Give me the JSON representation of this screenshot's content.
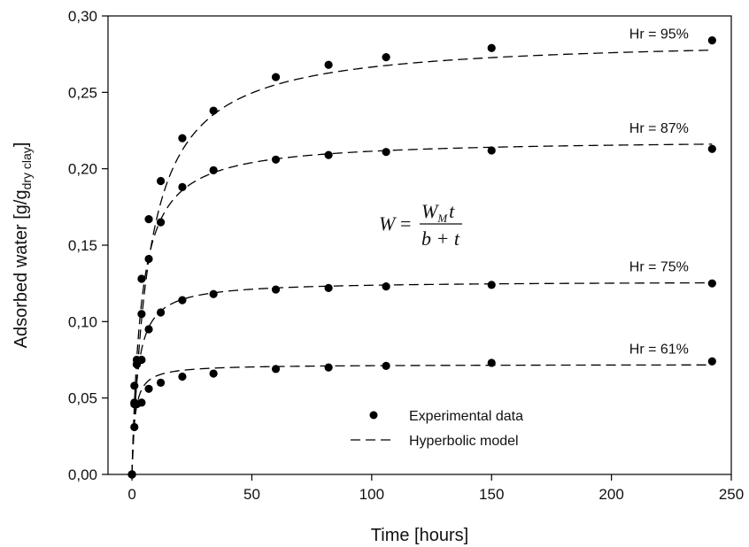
{
  "chart_data": {
    "type": "scatter",
    "xlabel": "Time [hours]",
    "ylabel_parts": {
      "main": "Adsorbed water [g/g",
      "sub": "dry clay",
      "end": "]"
    },
    "xlim": [
      -10,
      250
    ],
    "ylim": [
      0,
      0.3
    ],
    "xticks": [
      0,
      50,
      100,
      150,
      200,
      250
    ],
    "yticks": [
      0,
      0.05,
      0.1,
      0.15,
      0.2,
      0.25,
      0.3
    ],
    "xtick_labels": [
      "0",
      "50",
      "100",
      "150",
      "200",
      "250"
    ],
    "ytick_labels": [
      "0,00",
      "0,05",
      "0,10",
      "0,15",
      "0,20",
      "0,25",
      "0,30"
    ],
    "grid": false,
    "legend": {
      "position": "bottom-center",
      "items": [
        {
          "label": "Experimental data",
          "marker": "filled-circle"
        },
        {
          "label": "Hyperbolic model",
          "marker": "dashed-line"
        }
      ]
    },
    "formula": {
      "lhs": "W",
      "num_main": "W",
      "num_sub": "M",
      "num_tail": "t",
      "den": "b + t"
    },
    "series": [
      {
        "name": "Hr = 95%",
        "x": [
          0,
          1,
          2,
          4,
          7,
          12,
          21,
          34,
          60,
          82,
          106,
          150,
          242
        ],
        "y": [
          0,
          0.046,
          0.072,
          0.128,
          0.167,
          0.192,
          0.22,
          0.238,
          0.26,
          0.268,
          0.273,
          0.279,
          0.284
        ],
        "model": {
          "wm": 0.286,
          "b": 7.3
        }
      },
      {
        "name": "Hr = 87%",
        "x": [
          0,
          1,
          2,
          4,
          7,
          12,
          21,
          34,
          60,
          82,
          106,
          150,
          242
        ],
        "y": [
          0,
          0.058,
          0.075,
          0.105,
          0.141,
          0.165,
          0.188,
          0.199,
          0.206,
          0.209,
          0.211,
          0.212,
          0.213
        ],
        "model": {
          "wm": 0.2195,
          "b": 3.8
        }
      },
      {
        "name": "Hr = 75%",
        "x": [
          0,
          1,
          2,
          4,
          7,
          12,
          21,
          34,
          60,
          82,
          106,
          150,
          242
        ],
        "y": [
          0,
          0.047,
          0.072,
          0.075,
          0.095,
          0.106,
          0.114,
          0.118,
          0.121,
          0.122,
          0.123,
          0.124,
          0.125
        ],
        "model": {
          "wm": 0.1265,
          "b": 2.2
        }
      },
      {
        "name": "Hr = 61%",
        "x": [
          0,
          1,
          2,
          4,
          7,
          12,
          21,
          34,
          60,
          82,
          106,
          150,
          242
        ],
        "y": [
          0,
          0.031,
          0.046,
          0.047,
          0.056,
          0.06,
          0.064,
          0.066,
          0.069,
          0.07,
          0.071,
          0.073,
          0.074
        ],
        "model": {
          "wm": 0.072,
          "b": 1.2
        }
      }
    ]
  }
}
